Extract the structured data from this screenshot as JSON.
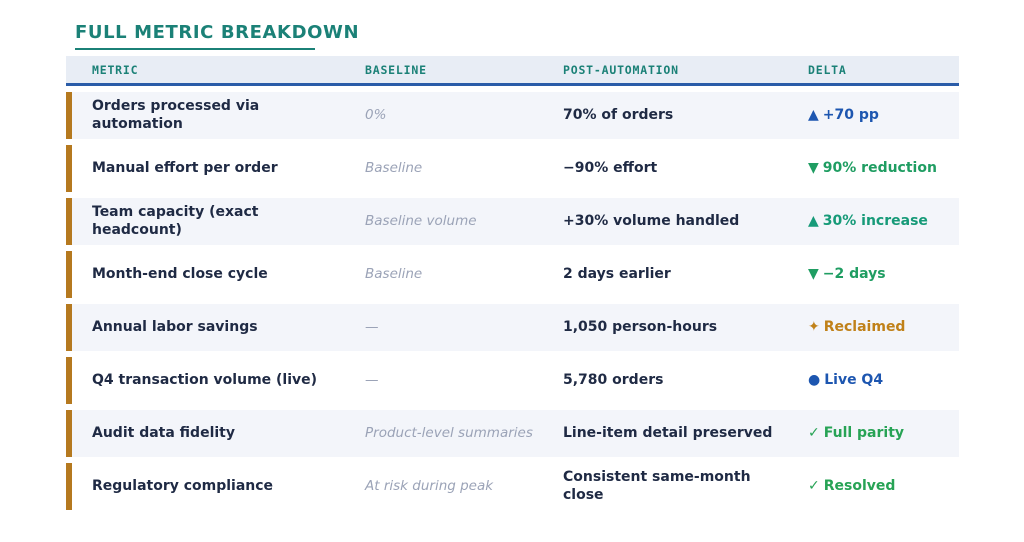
{
  "title": "FULL METRIC BREAKDOWN",
  "colors": {
    "title_teal": "#1b8177",
    "header_bg": "#e8edf5",
    "header_rule_blue": "#2a5ca8",
    "accent_bar_amber": "#b5791f",
    "row_stripe": "#f3f5fa",
    "metric_text": "#1f2a44",
    "baseline_text": "#9ba3b7",
    "delta_blue": "#1d56b0",
    "delta_green": "#1f9d62",
    "delta_teal": "#169a78",
    "delta_amber": "#c08119",
    "delta_check_green": "#27a355"
  },
  "chart_data": {
    "type": "table",
    "title": "FULL METRIC BREAKDOWN",
    "columns": [
      "METRIC",
      "BASELINE",
      "POST-AUTOMATION",
      "DELTA"
    ],
    "rows": [
      {
        "metric": "Orders processed via automation",
        "baseline": "0%",
        "post": "70% of orders",
        "delta": {
          "icon": "▲",
          "icon_name": "up-triangle-icon",
          "text": "+70 pp",
          "color": "#1d56b0"
        }
      },
      {
        "metric": "Manual effort per order",
        "baseline": "Baseline",
        "post": "−90% effort",
        "delta": {
          "icon": "▼",
          "icon_name": "down-triangle-icon",
          "text": "90% reduction",
          "color": "#1f9d62"
        }
      },
      {
        "metric": "Team capacity (exact headcount)",
        "baseline": "Baseline volume",
        "post": "+30% volume handled",
        "delta": {
          "icon": "▲",
          "icon_name": "up-triangle-icon",
          "text": "30% increase",
          "color": "#169a78"
        }
      },
      {
        "metric": "Month-end close cycle",
        "baseline": "Baseline",
        "post": "2 days earlier",
        "delta": {
          "icon": "▼",
          "icon_name": "down-triangle-icon",
          "text": "−2 days",
          "color": "#1f9d62"
        }
      },
      {
        "metric": "Annual labor savings",
        "baseline": "—",
        "post": "1,050 person-hours",
        "delta": {
          "icon": "✦",
          "icon_name": "sparkle-icon",
          "text": "Reclaimed",
          "color": "#c08119"
        }
      },
      {
        "metric": "Q4 transaction volume (live)",
        "baseline": "—",
        "post": "5,780 orders",
        "delta": {
          "icon": "●",
          "icon_name": "live-dot-icon",
          "text": "Live Q4",
          "color": "#1d56b0"
        }
      },
      {
        "metric": "Audit data fidelity",
        "baseline": "Product-level summaries",
        "post": "Line-item detail preserved",
        "delta": {
          "icon": "✓",
          "icon_name": "check-icon",
          "text": "Full parity",
          "color": "#27a355"
        }
      },
      {
        "metric": "Regulatory compliance",
        "baseline": "At risk during peak",
        "post": "Consistent same-month close",
        "delta": {
          "icon": "✓",
          "icon_name": "check-icon",
          "text": "Resolved",
          "color": "#27a355"
        }
      }
    ]
  }
}
